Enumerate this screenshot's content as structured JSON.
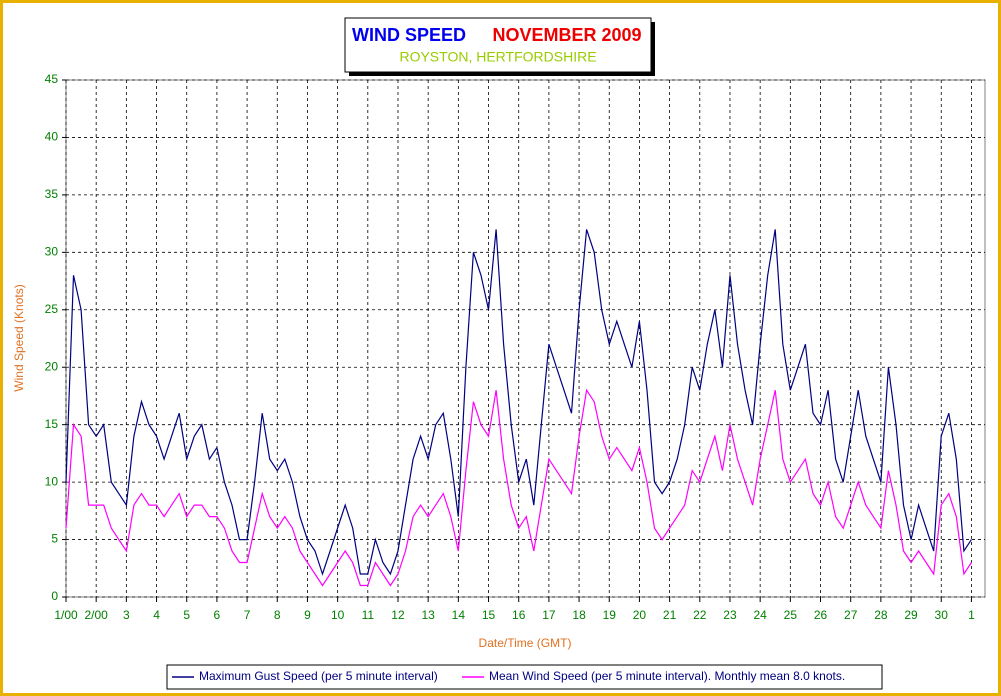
{
  "chart_data": {
    "type": "line",
    "title_parts": [
      "WIND SPEED",
      "NOVEMBER 2009"
    ],
    "subtitle": "ROYSTON, HERTFORDSHIRE",
    "xlabel": "Date/Time (GMT)",
    "ylabel": "Wind Speed (Knots)",
    "xlim": [
      0,
      30.45
    ],
    "ylim": [
      0,
      45
    ],
    "yticks": [
      0,
      5,
      10,
      15,
      20,
      25,
      30,
      35,
      40,
      45
    ],
    "xticks": [
      {
        "value": 0,
        "label": "1/00"
      },
      {
        "value": 1,
        "label": "2/00"
      },
      {
        "value": 2,
        "label": "3"
      },
      {
        "value": 3,
        "label": "4"
      },
      {
        "value": 4,
        "label": "5"
      },
      {
        "value": 5,
        "label": "6"
      },
      {
        "value": 6,
        "label": "7"
      },
      {
        "value": 7,
        "label": "8"
      },
      {
        "value": 8,
        "label": "9"
      },
      {
        "value": 9,
        "label": "10"
      },
      {
        "value": 10,
        "label": "11"
      },
      {
        "value": 11,
        "label": "12"
      },
      {
        "value": 12,
        "label": "13"
      },
      {
        "value": 13,
        "label": "14"
      },
      {
        "value": 14,
        "label": "15"
      },
      {
        "value": 15,
        "label": "16"
      },
      {
        "value": 16,
        "label": "17"
      },
      {
        "value": 17,
        "label": "18"
      },
      {
        "value": 18,
        "label": "19"
      },
      {
        "value": 19,
        "label": "20"
      },
      {
        "value": 20,
        "label": "21"
      },
      {
        "value": 21,
        "label": "22"
      },
      {
        "value": 22,
        "label": "23"
      },
      {
        "value": 23,
        "label": "24"
      },
      {
        "value": 24,
        "label": "25"
      },
      {
        "value": 25,
        "label": "26"
      },
      {
        "value": 26,
        "label": "27"
      },
      {
        "value": 27,
        "label": "28"
      },
      {
        "value": 28,
        "label": "29"
      },
      {
        "value": 29,
        "label": "30"
      },
      {
        "value": 30,
        "label": "1"
      }
    ],
    "grid": true,
    "x": [
      0,
      0.25,
      0.5,
      0.75,
      1,
      1.25,
      1.5,
      1.75,
      2,
      2.25,
      2.5,
      2.75,
      3,
      3.25,
      3.5,
      3.75,
      4,
      4.25,
      4.5,
      4.75,
      5,
      5.25,
      5.5,
      5.75,
      6,
      6.25,
      6.5,
      6.75,
      7,
      7.25,
      7.5,
      7.75,
      8,
      8.25,
      8.5,
      8.75,
      9,
      9.25,
      9.5,
      9.75,
      10,
      10.25,
      10.5,
      10.75,
      11,
      11.25,
      11.5,
      11.75,
      12,
      12.25,
      12.5,
      12.75,
      13,
      13.25,
      13.5,
      13.75,
      14,
      14.25,
      14.5,
      14.75,
      15,
      15.25,
      15.5,
      15.75,
      16,
      16.25,
      16.5,
      16.75,
      17,
      17.25,
      17.5,
      17.75,
      18,
      18.25,
      18.5,
      18.75,
      19,
      19.25,
      19.5,
      19.75,
      20,
      20.25,
      20.5,
      20.75,
      21,
      21.25,
      21.5,
      21.75,
      22,
      22.25,
      22.5,
      22.75,
      23,
      23.25,
      23.5,
      23.75,
      24,
      24.25,
      24.5,
      24.75,
      25,
      25.25,
      25.5,
      25.75,
      26,
      26.25,
      26.5,
      26.75,
      27,
      27.25,
      27.5,
      27.75,
      28,
      28.25,
      28.5,
      28.75,
      29,
      29.25,
      29.5,
      29.75,
      30
    ],
    "series": [
      {
        "name": "Maximum Gust Speed (per 5 minute interval)",
        "color": "#000080",
        "values": [
          10,
          28,
          25,
          15,
          14,
          15,
          10,
          9,
          8,
          14,
          17,
          15,
          14,
          12,
          14,
          16,
          12,
          14,
          15,
          12,
          13,
          10,
          8,
          5,
          5,
          10,
          16,
          12,
          11,
          12,
          10,
          7,
          5,
          4,
          2,
          4,
          6,
          8,
          6,
          2,
          2,
          5,
          3,
          2,
          4,
          8,
          12,
          14,
          12,
          15,
          16,
          12,
          7,
          20,
          30,
          28,
          25,
          32,
          22,
          15,
          10,
          12,
          8,
          15,
          22,
          20,
          18,
          16,
          25,
          32,
          30,
          25,
          22,
          24,
          22,
          20,
          24,
          18,
          10,
          9,
          10,
          12,
          15,
          20,
          18,
          22,
          25,
          20,
          28,
          22,
          18,
          15,
          22,
          28,
          32,
          22,
          18,
          20,
          22,
          16,
          15,
          18,
          12,
          10,
          14,
          18,
          14,
          12,
          10,
          20,
          15,
          8,
          5,
          8,
          6,
          4,
          14,
          16,
          12,
          4,
          5
        ]
      },
      {
        "name": "Mean Wind Speed (per 5 minute interval). Monthly mean 8.0 knots.",
        "color": "#ff00ff",
        "values": [
          6,
          15,
          14,
          8,
          8,
          8,
          6,
          5,
          4,
          8,
          9,
          8,
          8,
          7,
          8,
          9,
          7,
          8,
          8,
          7,
          7,
          6,
          4,
          3,
          3,
          6,
          9,
          7,
          6,
          7,
          6,
          4,
          3,
          2,
          1,
          2,
          3,
          4,
          3,
          1,
          1,
          3,
          2,
          1,
          2,
          4,
          7,
          8,
          7,
          8,
          9,
          7,
          4,
          11,
          17,
          15,
          14,
          18,
          12,
          8,
          6,
          7,
          4,
          8,
          12,
          11,
          10,
          9,
          14,
          18,
          17,
          14,
          12,
          13,
          12,
          11,
          13,
          10,
          6,
          5,
          6,
          7,
          8,
          11,
          10,
          12,
          14,
          11,
          15,
          12,
          10,
          8,
          12,
          15,
          18,
          12,
          10,
          11,
          12,
          9,
          8,
          10,
          7,
          6,
          8,
          10,
          8,
          7,
          6,
          11,
          8,
          4,
          3,
          4,
          3,
          2,
          8,
          9,
          7,
          2,
          3
        ]
      }
    ]
  }
}
